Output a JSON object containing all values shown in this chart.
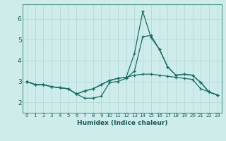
{
  "xlabel": "Humidex (Indice chaleur)",
  "bg_color": "#ceecea",
  "grid_color": "#b8dcda",
  "line_color": "#1a6b65",
  "xlim": [
    -0.5,
    23.5
  ],
  "ylim": [
    1.5,
    6.7
  ],
  "yticks": [
    2,
    3,
    4,
    5,
    6
  ],
  "xticks": [
    0,
    1,
    2,
    3,
    4,
    5,
    6,
    7,
    8,
    9,
    10,
    11,
    12,
    13,
    14,
    15,
    16,
    17,
    18,
    19,
    20,
    21,
    22,
    23
  ],
  "line1_x": [
    0,
    1,
    2,
    3,
    4,
    5,
    6,
    7,
    8,
    9,
    10,
    11,
    12,
    13,
    14,
    15,
    16,
    17,
    18,
    19,
    20,
    21,
    22,
    23
  ],
  "line1_y": [
    3.0,
    2.85,
    2.85,
    2.75,
    2.7,
    2.65,
    2.4,
    2.2,
    2.2,
    2.3,
    2.95,
    3.0,
    3.15,
    3.5,
    5.15,
    5.2,
    4.55,
    3.7,
    3.3,
    3.35,
    3.3,
    2.95,
    2.5,
    2.35
  ],
  "line2_x": [
    0,
    1,
    2,
    3,
    4,
    5,
    6,
    7,
    8,
    9,
    10,
    11,
    12,
    13,
    14,
    15,
    16,
    17,
    18,
    19,
    20,
    21,
    22,
    23
  ],
  "line2_y": [
    3.0,
    2.85,
    2.85,
    2.75,
    2.7,
    2.65,
    2.4,
    2.55,
    2.65,
    2.85,
    3.05,
    3.15,
    3.2,
    3.3,
    3.35,
    3.35,
    3.3,
    3.25,
    3.2,
    3.15,
    3.1,
    2.65,
    2.5,
    2.35
  ],
  "line3_x": [
    0,
    1,
    2,
    3,
    4,
    5,
    6,
    7,
    8,
    9,
    10,
    11,
    12,
    13,
    14,
    15,
    16,
    17,
    18,
    19,
    20,
    21,
    22,
    23
  ],
  "line3_y": [
    3.0,
    2.85,
    2.85,
    2.75,
    2.7,
    2.65,
    2.4,
    2.55,
    2.65,
    2.85,
    3.05,
    3.15,
    3.2,
    4.35,
    6.35,
    5.1,
    4.55,
    3.7,
    3.3,
    3.35,
    3.3,
    2.95,
    2.5,
    2.35
  ]
}
